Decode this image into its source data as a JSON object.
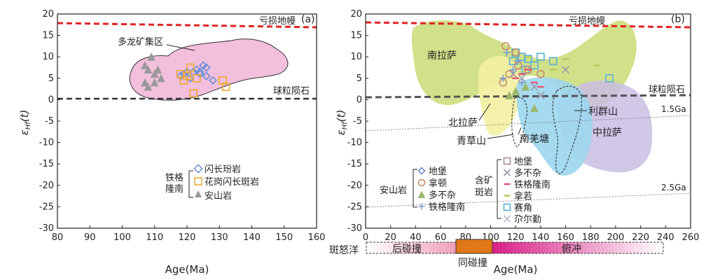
{
  "chart_data": [
    {
      "panel": "(a)",
      "type": "scatter",
      "xlabel": "Age(Ma)",
      "ylabel": "εHf(t)",
      "xlim": [
        80,
        160
      ],
      "ylim": [
        -30,
        20
      ],
      "xticks": [
        "80",
        "90",
        "100",
        "110",
        "120",
        "130",
        "140",
        "150",
        "160"
      ],
      "yticks": [
        "20",
        "15",
        "10",
        "5",
        "0",
        "-5",
        "-10",
        "-15",
        "-20",
        "-25",
        "-30"
      ],
      "reference_lines": [
        {
          "label": "亏损地幔",
          "y": 17.5,
          "color": "#e02424"
        },
        {
          "label": "球粒陨石",
          "y": 0,
          "color": "#333333"
        }
      ],
      "region": {
        "label": "多龙矿集区",
        "color": "#f2bfdc"
      },
      "legend_group": "铁格隆南",
      "series": [
        {
          "name": "闪长玢岩",
          "marker": "diamond",
          "color": "#6b8fd6",
          "points": [
            [
              118,
              5.5
            ],
            [
              119,
              6
            ],
            [
              120,
              6.5
            ],
            [
              121,
              5
            ],
            [
              122,
              6.5
            ],
            [
              123,
              7
            ],
            [
              124,
              6
            ],
            [
              125,
              8
            ],
            [
              126,
              5.5
            ],
            [
              128,
              4.5
            ],
            [
              126,
              7.5
            ],
            [
              124,
              6.5
            ]
          ]
        },
        {
          "name": "花岗闪长斑岩",
          "marker": "square",
          "color": "#f0a830",
          "points": [
            [
              118,
              6
            ],
            [
              119,
              4.5
            ],
            [
              120,
              5.5
            ],
            [
              121,
              7.5
            ],
            [
              122,
              1.5
            ],
            [
              123,
              5
            ],
            [
              131,
              4.5
            ],
            [
              132,
              3
            ]
          ]
        },
        {
          "name": "安山岩",
          "marker": "triangle",
          "color": "#999999",
          "points": [
            [
              107,
              8
            ],
            [
              108,
              7
            ],
            [
              109,
              10
            ],
            [
              110,
              6
            ],
            [
              110,
              4
            ],
            [
              111,
              7
            ],
            [
              107,
              4
            ],
            [
              108,
              3
            ],
            [
              112,
              5
            ]
          ]
        }
      ]
    },
    {
      "panel": "(b)",
      "type": "scatter",
      "xlabel": "Age(Ma)",
      "ylabel": "εHf(t)",
      "xlim": [
        0,
        260
      ],
      "ylim": [
        -30,
        20
      ],
      "xticks": [
        "0",
        "20",
        "40",
        "60",
        "80",
        "100",
        "120",
        "140",
        "160",
        "180",
        "200",
        "220",
        "240",
        "260"
      ],
      "yticks": [
        "20",
        "15",
        "10",
        "5",
        "0",
        "-5",
        "-10",
        "-15",
        "-20",
        "-25",
        "-30"
      ],
      "reference_lines": [
        {
          "label": "亏损地幔",
          "y": 17.5,
          "color": "#e02424"
        },
        {
          "label": "球粒陨石",
          "y": 0,
          "color": "#555555"
        }
      ],
      "evolution_lines": [
        {
          "label": "1.5Ga",
          "from": [
            0,
            -8
          ],
          "to": [
            260,
            -2
          ]
        },
        {
          "label": "2.5Ga",
          "from": [
            0,
            -26
          ],
          "to": [
            260,
            -18
          ]
        }
      ],
      "region_labels": [
        "南拉萨",
        "北拉萨",
        "青草山",
        "南羌塘",
        "利群山",
        "中拉萨"
      ],
      "legend_andesite": {
        "title": "安山岩",
        "items": [
          {
            "name": "地堡",
            "marker": "diamond",
            "color": "#6b8fd6"
          },
          {
            "name": "拿顿",
            "marker": "circle",
            "color": "#c98a6a"
          },
          {
            "name": "多不杂",
            "marker": "triangle",
            "color": "#9ab86a"
          },
          {
            "name": "铁格隆南",
            "marker": "plus",
            "color": "#7a9ad8"
          }
        ]
      },
      "legend_porphyry": {
        "title": "含矿斑岩",
        "items": [
          {
            "name": "地堡",
            "marker": "square",
            "color": "#b088a0"
          },
          {
            "name": "多不杂",
            "marker": "x",
            "color": "#9a9aa8"
          },
          {
            "name": "铁格隆南",
            "marker": "dash",
            "color": "#e05a7a"
          },
          {
            "name": "拿若",
            "marker": "dash",
            "color": "#b8cc60"
          },
          {
            "name": "赛角",
            "marker": "square",
            "color": "#5ab0d8"
          },
          {
            "name": "尕尔勤",
            "marker": "x",
            "color": "#c0b8c8"
          }
        ]
      },
      "series_points": [
        {
          "marker": "square",
          "color": "#5ab0d8",
          "points": [
            [
              120,
              11
            ],
            [
              125,
              10
            ],
            [
              130,
              9.5
            ],
            [
              135,
              8
            ],
            [
              140,
              10
            ],
            [
              150,
              9
            ],
            [
              195,
              5
            ],
            [
              128,
              7
            ],
            [
              118,
              9
            ]
          ]
        },
        {
          "marker": "circle",
          "color": "#c98a6a",
          "points": [
            [
              112,
              12.5
            ],
            [
              120,
              11
            ],
            [
              122,
              8
            ],
            [
              130,
              7
            ],
            [
              140,
              6
            ],
            [
              115,
              6
            ],
            [
              110,
              4
            ]
          ]
        },
        {
          "marker": "x",
          "color": "#9a9aa8",
          "points": [
            [
              160,
              7
            ],
            [
              135,
              3
            ],
            [
              125,
              5
            ],
            [
              118,
              6
            ],
            [
              140,
              1
            ]
          ]
        },
        {
          "marker": "triangle",
          "color": "#9ab86a",
          "points": [
            [
              120,
              2
            ],
            [
              135,
              -2
            ],
            [
              128,
              3
            ],
            [
              115,
              1
            ]
          ]
        },
        {
          "marker": "plus",
          "color": "#7a9ad8",
          "points": [
            [
              113,
              11
            ],
            [
              118,
              7
            ],
            [
              122,
              9
            ],
            [
              110,
              5
            ],
            [
              125,
              4
            ]
          ]
        },
        {
          "marker": "dash",
          "color": "#e05a7a",
          "points": [
            [
              120,
              5
            ],
            [
              125,
              6
            ],
            [
              130,
              7
            ],
            [
              135,
              4
            ],
            [
              140,
              3
            ]
          ]
        },
        {
          "marker": "dash",
          "color": "#b8cc60",
          "points": [
            [
              150,
              7
            ],
            [
              185,
              8
            ],
            [
              160,
              9.5
            ],
            [
              130,
              10
            ]
          ]
        }
      ],
      "timeline": {
        "label": "斑怒洋",
        "segments": [
          {
            "name": "后碰撞",
            "from": 0,
            "to": 72,
            "color": "#f4b8c8"
          },
          {
            "name": "同碰撞",
            "from": 72,
            "to": 102,
            "color": "#e07818"
          },
          {
            "name": "俯冲",
            "from": 102,
            "to": 240,
            "color": "#e0409a"
          }
        ]
      }
    }
  ]
}
